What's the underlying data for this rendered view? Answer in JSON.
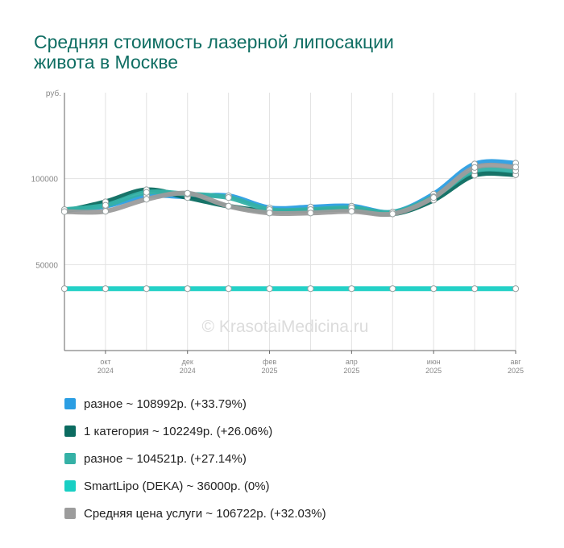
{
  "chart_data": {
    "type": "line",
    "title_lines": [
      "Средняя стоимость лазерной липосакции",
      "живота в Москве"
    ],
    "ylabel": "руб.",
    "ylim": [
      0,
      150000
    ],
    "yticks": [
      {
        "value": 100000,
        "label": "100000"
      },
      {
        "value": 50000,
        "label": "50000"
      }
    ],
    "x": [
      "2024-09",
      "2024-10",
      "2024-11",
      "2024-12",
      "2025-01",
      "2025-02",
      "2025-03",
      "2025-04",
      "2025-05",
      "2025-06",
      "2025-07",
      "2025-08"
    ],
    "xticks": [
      {
        "index": 1,
        "month": "окт",
        "year": "2024"
      },
      {
        "index": 3,
        "month": "дек",
        "year": "2024"
      },
      {
        "index": 5,
        "month": "фев",
        "year": "2025"
      },
      {
        "index": 7,
        "month": "апр",
        "year": "2025"
      },
      {
        "index": 9,
        "month": "июн",
        "year": "2025"
      },
      {
        "index": 11,
        "month": "авг",
        "year": "2025"
      }
    ],
    "grid": true,
    "legend_position": "bottom",
    "watermark": "© KrasotaiMedicina.ru",
    "series": [
      {
        "name": "разное",
        "legend": "разное ~ 108992р. (+33.79%)",
        "color": "#2b9ee3",
        "values": [
          81500,
          84000,
          90000,
          89500,
          90000,
          83000,
          83500,
          84000,
          80500,
          91000,
          108500,
          108992
        ]
      },
      {
        "name": "1 категория",
        "legend": "1 категория ~ 102249р. (+26.06%)",
        "color": "#0b6b60",
        "values": [
          81000,
          86500,
          93500,
          89000,
          84000,
          81000,
          81500,
          82000,
          79500,
          87500,
          102000,
          102249
        ]
      },
      {
        "name": "разное",
        "legend": "разное ~ 104521р. (+27.14%)",
        "color": "#35b1a6",
        "values": [
          82000,
          84500,
          92000,
          91000,
          89000,
          82000,
          82000,
          83000,
          80500,
          89500,
          104500,
          104521
        ]
      },
      {
        "name": "SmartLipo (DEKA)",
        "legend": "SmartLipo (DEKA) ~ 36000р. (0%)",
        "color": "#18cfc4",
        "values": [
          36000,
          36000,
          36000,
          36000,
          36000,
          36000,
          36000,
          36000,
          36000,
          36000,
          36000,
          36000
        ]
      },
      {
        "name": "Средняя цена услуги",
        "legend": "Средняя цена услуги ~ 106722р. (+32.03%)",
        "color": "#9c9c9c",
        "values": [
          80800,
          81000,
          88000,
          91500,
          84000,
          80000,
          80000,
          81000,
          79500,
          89000,
          106500,
          106722
        ]
      }
    ]
  }
}
